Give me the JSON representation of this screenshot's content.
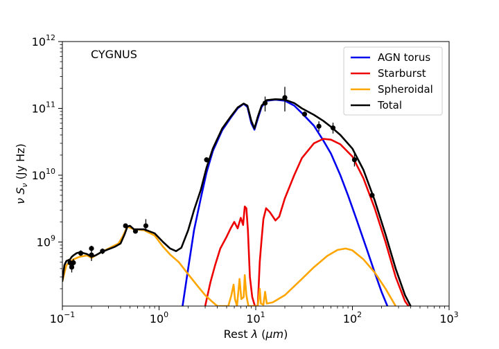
{
  "chart_data": {
    "type": "line",
    "annotation": "CYGNUS",
    "xlabel": "Rest λ (μm)",
    "ylabel": "ν Sν (Jy Hz)",
    "xscale": "log",
    "yscale": "log",
    "xlim": [
      0.1,
      1000
    ],
    "ylim": [
      110000000.0,
      1000000000000.0
    ],
    "x_ticks": [
      {
        "value": 0.1,
        "base": "10",
        "exp": "−1"
      },
      {
        "value": 1,
        "base": "10",
        "exp": "0"
      },
      {
        "value": 10,
        "base": "10",
        "exp": "1"
      },
      {
        "value": 100,
        "base": "10",
        "exp": "2"
      },
      {
        "value": 1000,
        "base": "10",
        "exp": "3"
      }
    ],
    "y_ticks": [
      {
        "value": 1000000000.0,
        "base": "10",
        "exp": "9"
      },
      {
        "value": 10000000000.0,
        "base": "10",
        "exp": "10"
      },
      {
        "value": 100000000000.0,
        "base": "10",
        "exp": "11"
      },
      {
        "value": 1000000000000.0,
        "base": "10",
        "exp": "12"
      }
    ],
    "legend_position": "top-right",
    "series": [
      {
        "name": "AGN torus",
        "color": "#0000ee",
        "points": [
          [
            1.75,
            110000000.0
          ],
          [
            2.0,
            400000000.0
          ],
          [
            2.3,
            1500000000.0
          ],
          [
            2.7,
            4500000000.0
          ],
          [
            3.1,
            11000000000.0
          ],
          [
            3.6,
            23000000000.0
          ],
          [
            4.5,
            47000000000.0
          ],
          [
            5.5,
            72000000000.0
          ],
          [
            6.5,
            100000000000.0
          ],
          [
            7.5,
            117000000000.0
          ],
          [
            8.2,
            105000000000.0
          ],
          [
            9.0,
            60000000000.0
          ],
          [
            9.7,
            48000000000.0
          ],
          [
            10.5,
            70000000000.0
          ],
          [
            11.5,
            105000000000.0
          ],
          [
            13,
            130000000000.0
          ],
          [
            16,
            135000000000.0
          ],
          [
            20,
            130000000000.0
          ],
          [
            25,
            110000000000.0
          ],
          [
            30,
            85000000000.0
          ],
          [
            40,
            55000000000.0
          ],
          [
            50,
            33000000000.0
          ],
          [
            60,
            21000000000.0
          ],
          [
            75,
            10000000000.0
          ],
          [
            90,
            5000000000.0
          ],
          [
            110,
            2200000000.0
          ],
          [
            140,
            800000000.0
          ],
          [
            170,
            350000000.0
          ],
          [
            200,
            180000000.0
          ],
          [
            230,
            110000000.0
          ]
        ]
      },
      {
        "name": "Starburst",
        "color": "#ee0000",
        "points": [
          [
            3.0,
            110000000.0
          ],
          [
            3.4,
            250000000.0
          ],
          [
            3.8,
            450000000.0
          ],
          [
            4.3,
            800000000.0
          ],
          [
            5.0,
            1200000000.0
          ],
          [
            5.5,
            1600000000.0
          ],
          [
            6.0,
            2000000000.0
          ],
          [
            6.5,
            1600000000.0
          ],
          [
            7.0,
            2300000000.0
          ],
          [
            7.4,
            1800000000.0
          ],
          [
            7.7,
            3400000000.0
          ],
          [
            8.0,
            3200000000.0
          ],
          [
            8.3,
            1500000000.0
          ],
          [
            8.7,
            300000000.0
          ],
          [
            9.2,
            150000000.0
          ],
          [
            9.8,
            110000000.0
          ],
          [
            10.5,
            110000000.0
          ],
          [
            11.0,
            500000000.0
          ],
          [
            11.5,
            1100000000.0
          ],
          [
            12.0,
            2200000000.0
          ],
          [
            12.8,
            3200000000.0
          ],
          [
            14,
            2800000000.0
          ],
          [
            16,
            2100000000.0
          ],
          [
            17.5,
            2400000000.0
          ],
          [
            20,
            4500000000.0
          ],
          [
            25,
            10000000000.0
          ],
          [
            30,
            18000000000.0
          ],
          [
            40,
            30000000000.0
          ],
          [
            50,
            35000000000.0
          ],
          [
            60,
            34000000000.0
          ],
          [
            75,
            29000000000.0
          ],
          [
            100,
            19000000000.0
          ],
          [
            130,
            9000000000.0
          ],
          [
            170,
            3200000000.0
          ],
          [
            220,
            1000000000.0
          ],
          [
            280,
            300000000.0
          ],
          [
            350,
            130000000.0
          ],
          [
            380,
            110000000.0
          ]
        ]
      },
      {
        "name": "Spheroidal",
        "color": "#ffa500",
        "points": [
          [
            0.1,
            260000000.0
          ],
          [
            0.11,
            450000000.0
          ],
          [
            0.13,
            550000000.0
          ],
          [
            0.15,
            600000000.0
          ],
          [
            0.18,
            630000000.0
          ],
          [
            0.2,
            580000000.0
          ],
          [
            0.25,
            700000000.0
          ],
          [
            0.3,
            800000000.0
          ],
          [
            0.38,
            950000000.0
          ],
          [
            0.42,
            1200000000.0
          ],
          [
            0.47,
            1700000000.0
          ],
          [
            0.55,
            1550000000.0
          ],
          [
            0.7,
            1500000000.0
          ],
          [
            0.9,
            1250000000.0
          ],
          [
            1.1,
            850000000.0
          ],
          [
            1.3,
            650000000.0
          ],
          [
            1.6,
            500000000.0
          ],
          [
            2.0,
            330000000.0
          ],
          [
            2.5,
            220000000.0
          ],
          [
            3.0,
            160000000.0
          ],
          [
            3.5,
            130000000.0
          ],
          [
            4.0,
            110000000.0
          ],
          [
            5.2,
            110000000.0
          ],
          [
            5.6,
            160000000.0
          ],
          [
            5.9,
            230000000.0
          ],
          [
            6.1,
            140000000.0
          ],
          [
            6.4,
            110000000.0
          ],
          [
            6.8,
            280000000.0
          ],
          [
            7.1,
            140000000.0
          ],
          [
            7.5,
            150000000.0
          ],
          [
            7.7,
            320000000.0
          ],
          [
            8.0,
            160000000.0
          ],
          [
            8.4,
            110000000.0
          ],
          [
            10.5,
            110000000.0
          ],
          [
            11.0,
            200000000.0
          ],
          [
            11.3,
            120000000.0
          ],
          [
            12,
            115000000.0
          ],
          [
            12.5,
            180000000.0
          ],
          [
            13,
            120000000.0
          ],
          [
            15,
            125000000.0
          ],
          [
            20,
            160000000.0
          ],
          [
            30,
            280000000.0
          ],
          [
            40,
            420000000.0
          ],
          [
            55,
            620000000.0
          ],
          [
            70,
            760000000.0
          ],
          [
            85,
            800000000.0
          ],
          [
            100,
            750000000.0
          ],
          [
            130,
            550000000.0
          ],
          [
            170,
            350000000.0
          ],
          [
            220,
            200000000.0
          ],
          [
            280,
            110000000.0
          ]
        ]
      },
      {
        "name": "Total",
        "color": "#000000",
        "points": [
          [
            0.1,
            260000000.0
          ],
          [
            0.105,
            450000000.0
          ],
          [
            0.11,
            520000000.0
          ],
          [
            0.12,
            550000000.0
          ],
          [
            0.125,
            600000000.0
          ],
          [
            0.13,
            630000000.0
          ],
          [
            0.14,
            680000000.0
          ],
          [
            0.15,
            700000000.0
          ],
          [
            0.16,
            690000000.0
          ],
          [
            0.18,
            660000000.0
          ],
          [
            0.2,
            600000000.0
          ],
          [
            0.22,
            630000000.0
          ],
          [
            0.25,
            700000000.0
          ],
          [
            0.3,
            780000000.0
          ],
          [
            0.35,
            850000000.0
          ],
          [
            0.4,
            950000000.0
          ],
          [
            0.44,
            1300000000.0
          ],
          [
            0.47,
            1700000000.0
          ],
          [
            0.5,
            1750000000.0
          ],
          [
            0.55,
            1550000000.0
          ],
          [
            0.7,
            1550000000.0
          ],
          [
            0.9,
            1350000000.0
          ],
          [
            1.1,
            1000000000.0
          ],
          [
            1.3,
            800000000.0
          ],
          [
            1.5,
            730000000.0
          ],
          [
            1.7,
            820000000.0
          ],
          [
            2.0,
            1500000000.0
          ],
          [
            2.3,
            3000000000.0
          ],
          [
            2.7,
            6000000000.0
          ],
          [
            3.1,
            13000000000.0
          ],
          [
            3.6,
            25000000000.0
          ],
          [
            4.5,
            50000000000.0
          ],
          [
            5.5,
            75000000000.0
          ],
          [
            6.5,
            103000000000.0
          ],
          [
            7.5,
            118000000000.0
          ],
          [
            8.2,
            110000000000.0
          ],
          [
            9.0,
            65000000000.0
          ],
          [
            9.7,
            50000000000.0
          ],
          [
            10.5,
            75000000000.0
          ],
          [
            11.5,
            110000000000.0
          ],
          [
            13,
            133000000000.0
          ],
          [
            16,
            137000000000.0
          ],
          [
            20,
            135000000000.0
          ],
          [
            25,
            120000000000.0
          ],
          [
            30,
            100000000000.0
          ],
          [
            40,
            80000000000.0
          ],
          [
            50,
            65000000000.0
          ],
          [
            60,
            53000000000.0
          ],
          [
            75,
            40000000000.0
          ],
          [
            100,
            25000000000.0
          ],
          [
            130,
            12000000000.0
          ],
          [
            170,
            4200000000.0
          ],
          [
            220,
            1300000000.0
          ],
          [
            280,
            400000000.0
          ],
          [
            350,
            160000000.0
          ],
          [
            400,
            110000000.0
          ]
        ]
      }
    ],
    "observations": [
      {
        "x": 0.12,
        "y": 490000000.0,
        "ylo": 420000000.0,
        "yhi": 570000000.0
      },
      {
        "x": 0.125,
        "y": 420000000.0,
        "ylo": 350000000.0,
        "yhi": 490000000.0
      },
      {
        "x": 0.13,
        "y": 490000000.0,
        "ylo": 430000000.0,
        "yhi": 560000000.0
      },
      {
        "x": 0.155,
        "y": 680000000.0,
        "ylo": 620000000.0,
        "yhi": 750000000.0
      },
      {
        "x": 0.2,
        "y": 800000000.0,
        "ylo": 720000000.0,
        "yhi": 880000000.0
      },
      {
        "x": 0.2,
        "y": 640000000.0,
        "ylo": 520000000.0,
        "yhi": 760000000.0
      },
      {
        "x": 0.26,
        "y": 730000000.0,
        "ylo": 660000000.0,
        "yhi": 800000000.0
      },
      {
        "x": 0.45,
        "y": 1750000000.0,
        "ylo": 1620000000.0,
        "yhi": 1880000000.0
      },
      {
        "x": 0.57,
        "y": 1450000000.0,
        "ylo": 1350000000.0,
        "yhi": 1550000000.0
      },
      {
        "x": 0.73,
        "y": 1750000000.0,
        "ylo": 1450000000.0,
        "yhi": 2200000000.0
      },
      {
        "x": 3.1,
        "y": 17000000000.0,
        "ylo": 15500000000.0,
        "yhi": 18500000000.0
      },
      {
        "x": 12.5,
        "y": 120000000000.0,
        "ylo": 90000000000.0,
        "yhi": 150000000000.0
      },
      {
        "x": 20,
        "y": 145000000000.0,
        "ylo": 90000000000.0,
        "yhi": 210000000000.0
      },
      {
        "x": 32,
        "y": 82000000000.0,
        "ylo": 75000000000.0,
        "yhi": 90000000000.0
      },
      {
        "x": 45,
        "y": 54000000000.0,
        "ylo": 45000000000.0,
        "yhi": 64000000000.0
      },
      {
        "x": 63,
        "y": 51000000000.0,
        "ylo": 42000000000.0,
        "yhi": 61000000000.0
      },
      {
        "x": 105,
        "y": 17000000000.0,
        "ylo": 13500000000.0,
        "yhi": 21000000000.0
      },
      {
        "x": 160,
        "y": 5000000000.0,
        "ylo": 4600000000.0,
        "yhi": 5400000000.0
      }
    ]
  }
}
